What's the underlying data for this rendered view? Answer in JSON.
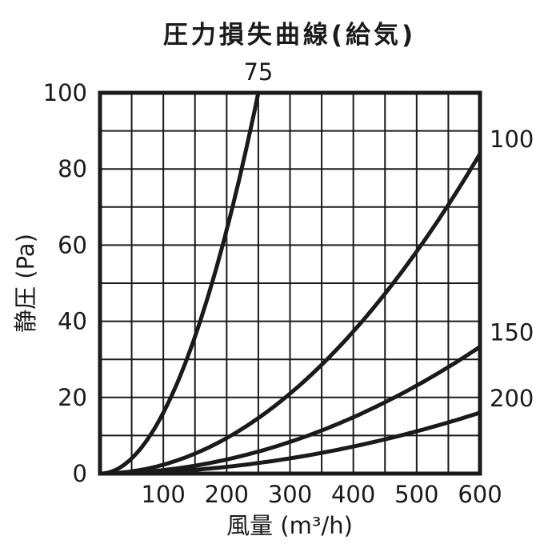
{
  "chart_data": {
    "type": "line",
    "title": "圧力損失曲線(給気)",
    "xlabel": "風量 (m³/h)",
    "ylabel": "静圧 (Pa)",
    "xlim": [
      0,
      600
    ],
    "ylim": [
      0,
      100
    ],
    "x_ticks": [
      "100",
      "200",
      "300",
      "400",
      "500",
      "600"
    ],
    "y_ticks": [
      "0",
      "20",
      "40",
      "60",
      "80",
      "100"
    ],
    "grid": true,
    "grid_step": {
      "x": 50,
      "y": 10
    },
    "series": [
      {
        "name": "75",
        "exponent": 2,
        "x": [
          0,
          50,
          100,
          150,
          200,
          250
        ],
        "y": [
          0,
          4,
          16,
          36,
          64,
          100
        ]
      },
      {
        "name": "100",
        "exponent": 2,
        "x": [
          0,
          100,
          200,
          300,
          400,
          500,
          600
        ],
        "y": [
          0,
          2.3,
          9.3,
          21,
          37.3,
          58.3,
          84
        ]
      },
      {
        "name": "150",
        "exponent": 2,
        "x": [
          0,
          100,
          200,
          300,
          400,
          500,
          600
        ],
        "y": [
          0,
          0.9,
          3.7,
          8.3,
          14.8,
          23.1,
          33.3
        ]
      },
      {
        "name": "200",
        "exponent": 2,
        "x": [
          0,
          100,
          200,
          300,
          400,
          500,
          600
        ],
        "y": [
          0,
          0.4,
          1.8,
          4,
          7.1,
          11.1,
          16
        ]
      }
    ]
  }
}
